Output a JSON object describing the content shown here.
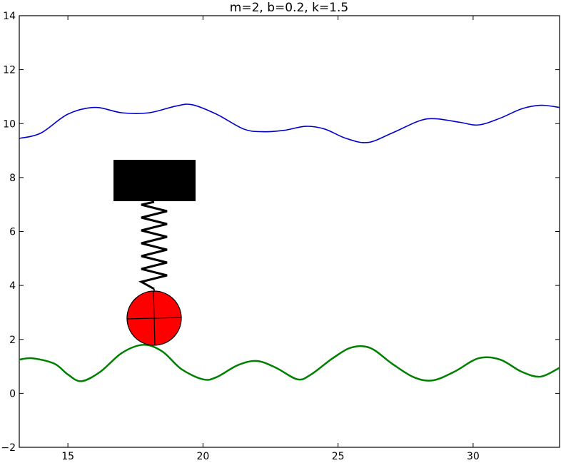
{
  "chart_data": {
    "type": "line",
    "title": "m=2, b=0.2, k=1.5",
    "xlabel": "",
    "ylabel": "",
    "xlim": [
      13.2,
      33.2
    ],
    "ylim": [
      -2,
      14
    ],
    "x_ticks": [
      15,
      20,
      25,
      30
    ],
    "y_ticks": [
      -2,
      0,
      2,
      4,
      6,
      8,
      10,
      12,
      14
    ],
    "grid": false,
    "series": [
      {
        "color": "#0000cc",
        "x": [
          13.2,
          14.0,
          15.0,
          16.0,
          17.0,
          18.0,
          19.0,
          19.6,
          20.5,
          21.5,
          22.2,
          23.0,
          23.8,
          24.5,
          25.3,
          26.1,
          27.0,
          28.0,
          28.6,
          29.5,
          30.2,
          31.0,
          31.8,
          32.5,
          33.2
        ],
        "values": [
          9.45,
          9.65,
          10.35,
          10.6,
          10.4,
          10.4,
          10.65,
          10.7,
          10.35,
          9.8,
          9.7,
          9.75,
          9.9,
          9.8,
          9.45,
          9.3,
          9.65,
          10.1,
          10.18,
          10.05,
          9.95,
          10.2,
          10.55,
          10.68,
          10.6
        ]
      },
      {
        "color": "#008000",
        "x": [
          13.2,
          13.7,
          14.5,
          15.0,
          15.5,
          16.2,
          17.0,
          17.8,
          18.5,
          19.2,
          20.0,
          20.5,
          21.3,
          22.0,
          22.7,
          23.5,
          24.0,
          24.8,
          25.5,
          26.2,
          27.0,
          27.8,
          28.5,
          29.3,
          30.2,
          31.0,
          31.8,
          32.5,
          33.2
        ],
        "values": [
          1.25,
          1.3,
          1.1,
          0.7,
          0.45,
          0.8,
          1.5,
          1.8,
          1.55,
          0.9,
          0.52,
          0.6,
          1.05,
          1.2,
          0.95,
          0.52,
          0.7,
          1.3,
          1.7,
          1.68,
          1.1,
          0.6,
          0.48,
          0.8,
          1.3,
          1.25,
          0.8,
          0.62,
          0.95
        ]
      }
    ],
    "block_color": "#000000",
    "ball_color": "#ff0000",
    "spring_color": "#000000"
  }
}
